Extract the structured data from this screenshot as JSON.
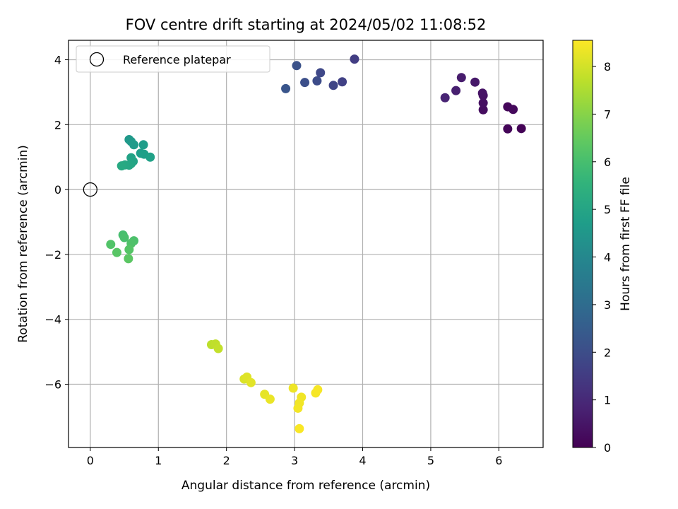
{
  "chart_data": {
    "type": "scatter",
    "title": "FOV centre drift starting at 2024/05/02 11:08:52",
    "xlabel": "Angular distance from reference (arcmin)",
    "ylabel": "Rotation from reference (arcmin)",
    "xlim": [
      -0.32,
      6.65
    ],
    "ylim": [
      -7.95,
      4.6
    ],
    "xticks": [
      0,
      1,
      2,
      3,
      4,
      5,
      6
    ],
    "yticks": [
      -6,
      -4,
      -2,
      0,
      2,
      4
    ],
    "grid": true,
    "legend": {
      "placement": "top-left",
      "entries": [
        "Reference platepar"
      ]
    },
    "reference": {
      "x": 0,
      "y": 0
    },
    "colorbar": {
      "label": "Hours from first FF file",
      "range": [
        0,
        8.55
      ],
      "ticks": [
        0,
        1,
        2,
        3,
        4,
        5,
        6,
        7,
        8
      ],
      "colormap": "viridis"
    },
    "points": [
      {
        "x": 6.33,
        "y": 1.88,
        "t": 0.05
      },
      {
        "x": 6.13,
        "y": 1.87,
        "t": 0.1
      },
      {
        "x": 6.13,
        "y": 2.55,
        "t": 0.15
      },
      {
        "x": 6.21,
        "y": 2.47,
        "t": 0.2
      },
      {
        "x": 5.77,
        "y": 2.46,
        "t": 0.3
      },
      {
        "x": 5.77,
        "y": 2.67,
        "t": 0.35
      },
      {
        "x": 5.77,
        "y": 2.9,
        "t": 0.4
      },
      {
        "x": 5.76,
        "y": 2.97,
        "t": 0.45
      },
      {
        "x": 5.65,
        "y": 3.31,
        "t": 0.55
      },
      {
        "x": 5.45,
        "y": 3.45,
        "t": 0.65
      },
      {
        "x": 5.37,
        "y": 3.05,
        "t": 0.75
      },
      {
        "x": 5.21,
        "y": 2.83,
        "t": 0.85
      },
      {
        "x": 3.88,
        "y": 4.02,
        "t": 1.55
      },
      {
        "x": 3.7,
        "y": 3.32,
        "t": 1.65
      },
      {
        "x": 3.57,
        "y": 3.21,
        "t": 1.75
      },
      {
        "x": 3.38,
        "y": 3.6,
        "t": 1.85
      },
      {
        "x": 3.33,
        "y": 3.35,
        "t": 1.95
      },
      {
        "x": 3.15,
        "y": 3.3,
        "t": 2.05
      },
      {
        "x": 3.03,
        "y": 3.82,
        "t": 2.15
      },
      {
        "x": 2.87,
        "y": 3.11,
        "t": 2.25
      },
      {
        "x": 0.57,
        "y": 1.54,
        "t": 4.55
      },
      {
        "x": 0.6,
        "y": 1.48,
        "t": 4.6
      },
      {
        "x": 0.64,
        "y": 1.38,
        "t": 4.65
      },
      {
        "x": 0.78,
        "y": 1.38,
        "t": 4.7
      },
      {
        "x": 0.74,
        "y": 1.12,
        "t": 4.75
      },
      {
        "x": 0.79,
        "y": 1.09,
        "t": 4.8
      },
      {
        "x": 0.88,
        "y": 1.0,
        "t": 4.85
      },
      {
        "x": 0.6,
        "y": 0.98,
        "t": 4.9
      },
      {
        "x": 0.63,
        "y": 0.87,
        "t": 4.95
      },
      {
        "x": 0.6,
        "y": 0.8,
        "t": 5.0
      },
      {
        "x": 0.57,
        "y": 0.75,
        "t": 5.05
      },
      {
        "x": 0.51,
        "y": 0.76,
        "t": 5.1
      },
      {
        "x": 0.46,
        "y": 0.73,
        "t": 5.15
      },
      {
        "x": 0.48,
        "y": -1.4,
        "t": 6.0
      },
      {
        "x": 0.5,
        "y": -1.48,
        "t": 6.05
      },
      {
        "x": 0.64,
        "y": -1.58,
        "t": 6.1
      },
      {
        "x": 0.6,
        "y": -1.66,
        "t": 6.15
      },
      {
        "x": 0.3,
        "y": -1.69,
        "t": 6.2
      },
      {
        "x": 0.57,
        "y": -1.85,
        "t": 6.25
      },
      {
        "x": 0.39,
        "y": -1.94,
        "t": 6.3
      },
      {
        "x": 0.56,
        "y": -2.13,
        "t": 6.35
      },
      {
        "x": 1.78,
        "y": -4.78,
        "t": 7.7
      },
      {
        "x": 1.84,
        "y": -4.76,
        "t": 7.75
      },
      {
        "x": 1.88,
        "y": -4.9,
        "t": 7.8
      },
      {
        "x": 2.26,
        "y": -5.84,
        "t": 8.1
      },
      {
        "x": 2.3,
        "y": -5.78,
        "t": 8.15
      },
      {
        "x": 2.36,
        "y": -5.95,
        "t": 8.2
      },
      {
        "x": 2.56,
        "y": -6.31,
        "t": 8.25
      },
      {
        "x": 2.64,
        "y": -6.46,
        "t": 8.3
      },
      {
        "x": 2.98,
        "y": -6.12,
        "t": 8.35
      },
      {
        "x": 3.1,
        "y": -6.4,
        "t": 8.38
      },
      {
        "x": 3.07,
        "y": -6.58,
        "t": 8.4
      },
      {
        "x": 3.05,
        "y": -6.74,
        "t": 8.42
      },
      {
        "x": 3.31,
        "y": -6.27,
        "t": 8.44
      },
      {
        "x": 3.34,
        "y": -6.17,
        "t": 8.46
      },
      {
        "x": 3.07,
        "y": -7.37,
        "t": 8.5
      }
    ]
  }
}
